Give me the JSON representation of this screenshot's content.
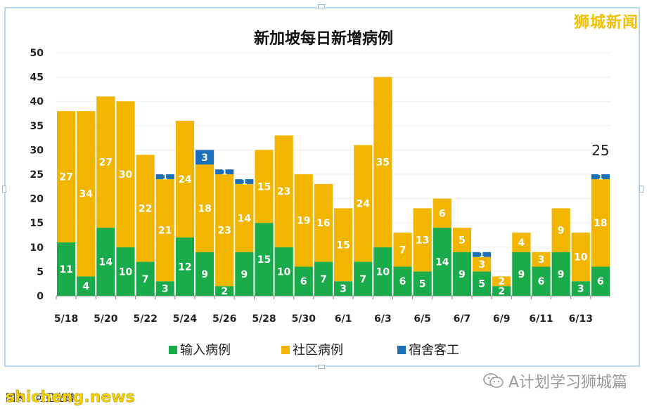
{
  "chart_data": {
    "type": "bar",
    "stacked": true,
    "title": "新加坡每日新增病例",
    "ylim": [
      0,
      50
    ],
    "yticks": [
      0,
      5,
      10,
      15,
      20,
      25,
      30,
      35,
      40,
      45,
      50
    ],
    "categories": [
      "5/18",
      "5/19",
      "5/20",
      "5/21",
      "5/22",
      "5/23",
      "5/24",
      "5/25",
      "5/26",
      "5/27",
      "5/28",
      "5/29",
      "5/30",
      "5/31",
      "6/1",
      "6/2",
      "6/3",
      "6/4",
      "6/5",
      "6/6",
      "6/7",
      "6/8",
      "6/9",
      "6/10",
      "6/11",
      "6/12",
      "6/13",
      "6/14"
    ],
    "xtick_labels": [
      "5/18",
      "",
      "5/20",
      "",
      "5/22",
      "",
      "5/24",
      "",
      "5/26",
      "",
      "5/28",
      "",
      "5/30",
      "",
      "6/1",
      "",
      "6/3",
      "",
      "6/5",
      "",
      "6/7",
      "",
      "6/9",
      "",
      "6/11",
      "",
      "6/13",
      ""
    ],
    "series": [
      {
        "name": "输入病例",
        "color": "#1aab4a",
        "values": [
          11,
          4,
          14,
          10,
          7,
          3,
          12,
          9,
          2,
          9,
          15,
          10,
          6,
          7,
          3,
          7,
          10,
          6,
          5,
          14,
          9,
          5,
          2,
          9,
          6,
          9,
          3,
          6
        ]
      },
      {
        "name": "社区病例",
        "color": "#f2b600",
        "values": [
          27,
          34,
          27,
          30,
          22,
          21,
          24,
          18,
          23,
          14,
          15,
          23,
          19,
          16,
          15,
          24,
          35,
          7,
          13,
          6,
          5,
          3,
          2,
          4,
          3,
          9,
          10,
          18
        ]
      },
      {
        "name": "宿舍客工",
        "color": "#1a6fb8",
        "values": [
          0,
          0,
          0,
          0,
          0,
          1,
          0,
          3,
          1,
          1,
          0,
          0,
          0,
          0,
          0,
          0,
          0,
          0,
          0,
          0,
          0,
          1,
          0,
          0,
          0,
          0,
          0,
          1
        ]
      }
    ],
    "annotations": [
      {
        "category": "6/14",
        "text": "25"
      }
    ],
    "legend_position": "bottom",
    "grid": true
  },
  "brand": "狮城新闻",
  "footer": {
    "caption": "图表：可见光谱",
    "site": "shicheng.news",
    "wechat_label": "A计划学习狮城篇"
  }
}
